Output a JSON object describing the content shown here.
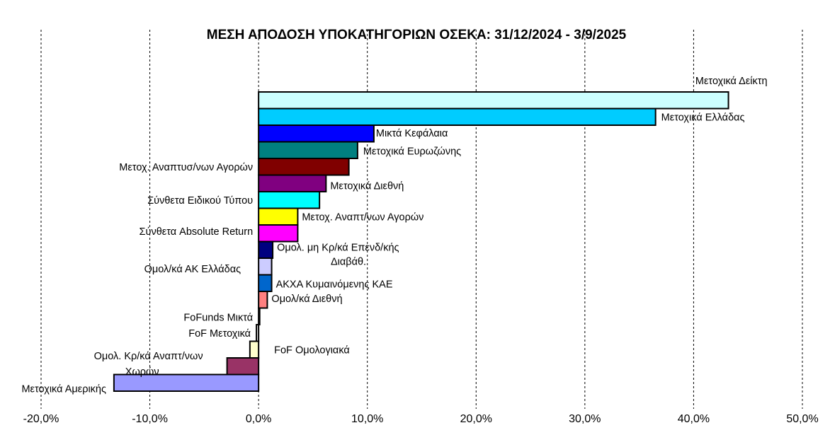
{
  "chart_data": {
    "type": "bar",
    "orientation": "horizontal",
    "title": "ΜΕΣΗ ΑΠΟΔΟΣΗ ΥΠΟΚΑΤΗΓΟΡΙΩΝ ΟΣΕΚΑ: 31/12/2024 - 3/9/2025",
    "xlabel": "",
    "ylabel": "",
    "xlim": [
      -20,
      50
    ],
    "x_ticks": [
      "-20,0%",
      "-10,0%",
      "0,0%",
      "10,0%",
      "20,0%",
      "30,0%",
      "40,0%",
      "50,0%"
    ],
    "grid": "vertical dashed",
    "unit": "%",
    "categories": [
      "Μετοχικά Δείκτη",
      "Μετοχικά Ελλάδας",
      "Μικτά Κεφάλαια",
      "Μετοχικά Ευρωζώνης",
      "Μετοχ. Αναπτυσ/νων Αγορών",
      "Μετοχικά Διεθνή",
      "Σύνθετα Ειδικού Τύπου",
      "Μετοχ. Αναπτ/νων Αγορών",
      "Σύνθετα Absolute Return",
      "Ομολ. μη Κρ/κά Επενδ/κής Διαβάθ.",
      "Ομολ/κά ΑΚ Ελλάδας",
      "ΑΚΧΑ Κυμαινόμενης ΚΑΕ",
      "Ομολ/κά Διεθνή",
      "FoFunds Μικτά",
      "FoF Μετοχικά",
      "FoF Ομολογιακά",
      "Ομολ. Κρ/κά Αναπτ/νων Χωρών",
      "Μετοχικά Αμερικής"
    ],
    "values": [
      43.2,
      36.5,
      10.6,
      9.1,
      8.3,
      6.2,
      5.6,
      3.6,
      3.6,
      1.3,
      1.2,
      1.2,
      0.8,
      0.1,
      -0.2,
      -0.8,
      -2.9,
      -13.3
    ],
    "colors": [
      "#ccffff",
      "#00ccff",
      "#0000ff",
      "#008080",
      "#800000",
      "#800080",
      "#00ffff",
      "#ffff00",
      "#ff00ff",
      "#000080",
      "#ccccff",
      "#0066cc",
      "#ff8080",
      "#ffffff",
      "#ffffff",
      "#ffffcc",
      "#993366",
      "#9999ff"
    ],
    "label_lines": [
      [
        "Μετοχικά Δείκτη"
      ],
      [
        "Μετοχικά Ελλάδας"
      ],
      [
        "Μικτά Κεφάλαια"
      ],
      [
        "Μετοχικά Ευρωζώνης"
      ],
      [
        "Μετοχ. Αναπτυσ/νων Αγορών"
      ],
      [
        "Μετοχικά Διεθνή"
      ],
      [
        "Σύνθετα Ειδικού Τύπου"
      ],
      [
        "Μετοχ. Αναπτ/νων Αγορών"
      ],
      [
        "Σύνθετα Absolute Return"
      ],
      [
        "Ομολ. μη Κρ/κά Επενδ/κής",
        "Διαβάθ."
      ],
      [
        "Ομολ/κά ΑΚ Ελλάδας"
      ],
      [
        "ΑΚΧΑ Κυμαινόμενης ΚΑΕ"
      ],
      [
        "Ομολ/κά Διεθνή"
      ],
      [
        "FoFunds Μικτά"
      ],
      [
        "FoF Μετοχικά"
      ],
      [
        "FoF Ομολογιακά"
      ],
      [
        "Ομολ. Κρ/κά Αναπτ/νων",
        "Χωρών"
      ],
      [
        "Μετοχικά Αμερικής"
      ]
    ]
  }
}
